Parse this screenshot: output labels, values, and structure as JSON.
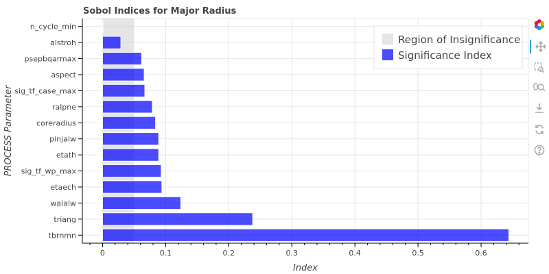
{
  "chart_data": {
    "type": "bar",
    "orientation": "horizontal",
    "title": "Sobol Indices for Major Radius",
    "xlabel": "Index",
    "ylabel": "PROCESS Parameter",
    "xlim": [
      -0.032,
      0.675
    ],
    "x_ticks": [
      "0",
      "0.1",
      "0.2",
      "0.3",
      "0.4",
      "0.5",
      "0.6"
    ],
    "categories": [
      "tbrnmn",
      "triang",
      "walalw",
      "etaech",
      "sig_tf_wp_max",
      "etath",
      "pinjalw",
      "coreradius",
      "ralpne",
      "sig_tf_case_max",
      "aspect",
      "psepbqarmax",
      "alstroh",
      "n_cycle_min"
    ],
    "series": [
      {
        "name": "Significance Index",
        "color": "#0000ff",
        "values": [
          0.644,
          0.238,
          0.124,
          0.094,
          0.093,
          0.089,
          0.089,
          0.084,
          0.079,
          0.067,
          0.066,
          0.062,
          0.029,
          0.0005
        ]
      }
    ],
    "region": {
      "name": "Region of Insignificance",
      "color": "#d3d3d3",
      "x_range": [
        0,
        0.05
      ]
    },
    "grid": true,
    "legend_position": "top-right"
  },
  "toolbar": {
    "icons": [
      "bokeh-logo-icon",
      "pan-icon",
      "box-zoom-icon",
      "wheel-zoom-icon",
      "save-icon",
      "reset-icon",
      "help-icon"
    ]
  }
}
